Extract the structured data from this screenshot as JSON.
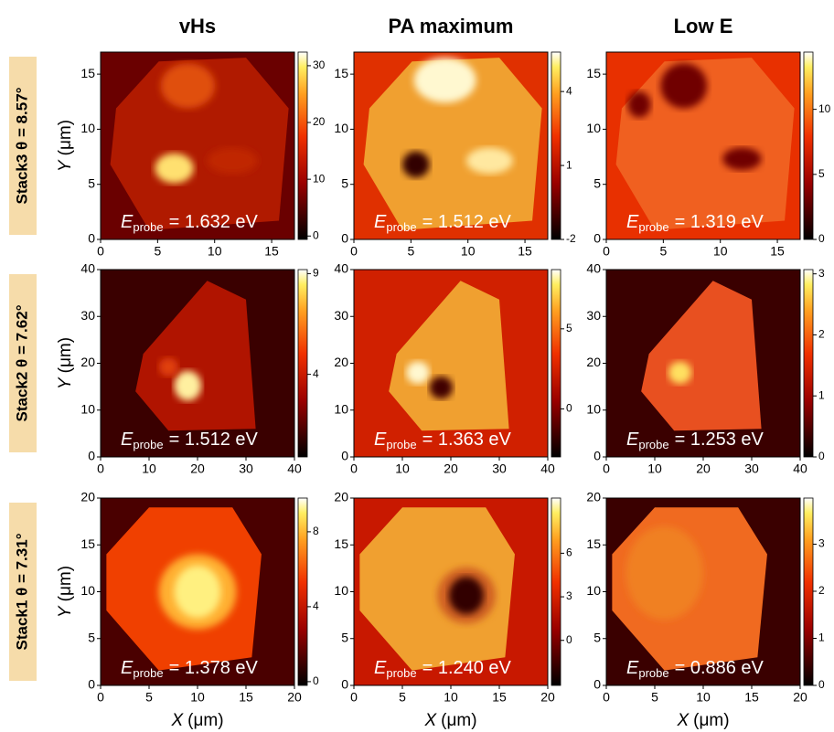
{
  "chart_data": [
    {
      "type": "heatmap",
      "title": "vHs",
      "row_label": "Stack3 θ = 8.57°",
      "y_label": {
        "symbol": "Y",
        "unit": "(μm)"
      },
      "energy": {
        "symbol": "E",
        "subscript": "probe",
        "text": "= 1.632 eV"
      },
      "xlim": [
        0,
        17
      ],
      "xticks": [
        0,
        5,
        10,
        15
      ],
      "ylim": [
        0,
        17
      ],
      "yticks": [
        0,
        5,
        10,
        15
      ],
      "colorbar": {
        "clim": [
          -0.6,
          32.4
        ],
        "ticks": [
          0,
          10,
          20,
          30
        ]
      }
    },
    {
      "type": "heatmap",
      "title": "PA maximum",
      "energy": {
        "symbol": "E",
        "subscript": "probe",
        "text": "= 1.512 eV"
      },
      "xlim": [
        0,
        17
      ],
      "xticks": [
        0,
        5,
        10,
        15
      ],
      "ylim": [
        0,
        17
      ],
      "yticks": [
        0,
        5,
        10,
        15
      ],
      "colorbar": {
        "clim": [
          -2,
          5.6
        ],
        "ticks": [
          -2,
          1,
          4
        ]
      }
    },
    {
      "type": "heatmap",
      "title": "Low E",
      "energy": {
        "symbol": "E",
        "subscript": "probe",
        "text": "= 1.319 eV"
      },
      "xlim": [
        0,
        17
      ],
      "xticks": [
        0,
        5,
        10,
        15
      ],
      "ylim": [
        0,
        17
      ],
      "yticks": [
        0,
        5,
        10,
        15
      ],
      "colorbar": {
        "clim": [
          0,
          14.4
        ],
        "ticks": [
          0,
          5,
          10
        ]
      }
    },
    {
      "type": "heatmap",
      "row_label": "Stack2 θ = 7.62°",
      "y_label": {
        "symbol": "Y",
        "unit": "(μm)"
      },
      "energy": {
        "symbol": "E",
        "subscript": "probe",
        "text": "= 1.512 eV"
      },
      "xlim": [
        0,
        40
      ],
      "xticks": [
        0,
        10,
        20,
        30,
        40
      ],
      "ylim": [
        0,
        40
      ],
      "yticks": [
        0,
        10,
        20,
        30,
        40
      ],
      "colorbar": {
        "clim": [
          -0.1,
          9.2
        ],
        "ticks": [
          4,
          9
        ]
      }
    },
    {
      "type": "heatmap",
      "energy": {
        "symbol": "E",
        "subscript": "probe",
        "text": "= 1.363 eV"
      },
      "xlim": [
        0,
        40
      ],
      "xticks": [
        0,
        10,
        20,
        30,
        40
      ],
      "ylim": [
        0,
        40
      ],
      "yticks": [
        0,
        10,
        20,
        30,
        40
      ],
      "colorbar": {
        "clim": [
          -3,
          8.7
        ],
        "ticks": [
          0,
          5
        ]
      }
    },
    {
      "type": "heatmap",
      "energy": {
        "symbol": "E",
        "subscript": "probe",
        "text": "= 1.253 eV"
      },
      "xlim": [
        0,
        40
      ],
      "xticks": [
        0,
        10,
        20,
        30,
        40
      ],
      "ylim": [
        0,
        40
      ],
      "yticks": [
        0,
        10,
        20,
        30,
        40
      ],
      "colorbar": {
        "clim": [
          0,
          3.07
        ],
        "ticks": [
          0,
          1,
          2,
          3
        ]
      }
    },
    {
      "type": "heatmap",
      "row_label": "Stack1 θ = 7.31°",
      "y_label": {
        "symbol": "Y",
        "unit": "(μm)"
      },
      "x_label": {
        "symbol": "X",
        "unit": "(μm)"
      },
      "energy": {
        "symbol": "E",
        "subscript": "probe",
        "text": "= 1.378 eV"
      },
      "xlim": [
        0,
        20
      ],
      "xticks": [
        0,
        5,
        10,
        15,
        20
      ],
      "ylim": [
        0,
        20
      ],
      "yticks": [
        0,
        5,
        10,
        15,
        20
      ],
      "colorbar": {
        "clim": [
          -0.2,
          9.8
        ],
        "ticks": [
          0,
          4,
          8
        ]
      }
    },
    {
      "type": "heatmap",
      "x_label": {
        "symbol": "X",
        "unit": "(μm)"
      },
      "energy": {
        "symbol": "E",
        "subscript": "probe",
        "text": "= 1.240 eV"
      },
      "xlim": [
        0,
        20
      ],
      "xticks": [
        0,
        5,
        10,
        15,
        20
      ],
      "ylim": [
        0,
        20
      ],
      "yticks": [
        0,
        5,
        10,
        15,
        20
      ],
      "colorbar": {
        "clim": [
          -3.1,
          9.8
        ],
        "ticks": [
          0,
          3,
          6
        ]
      }
    },
    {
      "type": "heatmap",
      "x_label": {
        "symbol": "X",
        "unit": "(μm)"
      },
      "energy": {
        "symbol": "E",
        "subscript": "probe",
        "text": "= 0.886 eV"
      },
      "xlim": [
        0,
        20
      ],
      "xticks": [
        0,
        5,
        10,
        15,
        20
      ],
      "ylim": [
        0,
        20
      ],
      "yticks": [
        0,
        5,
        10,
        15,
        20
      ],
      "colorbar": {
        "clim": [
          0,
          3.98
        ],
        "ticks": [
          0,
          1,
          2,
          3
        ]
      }
    }
  ]
}
